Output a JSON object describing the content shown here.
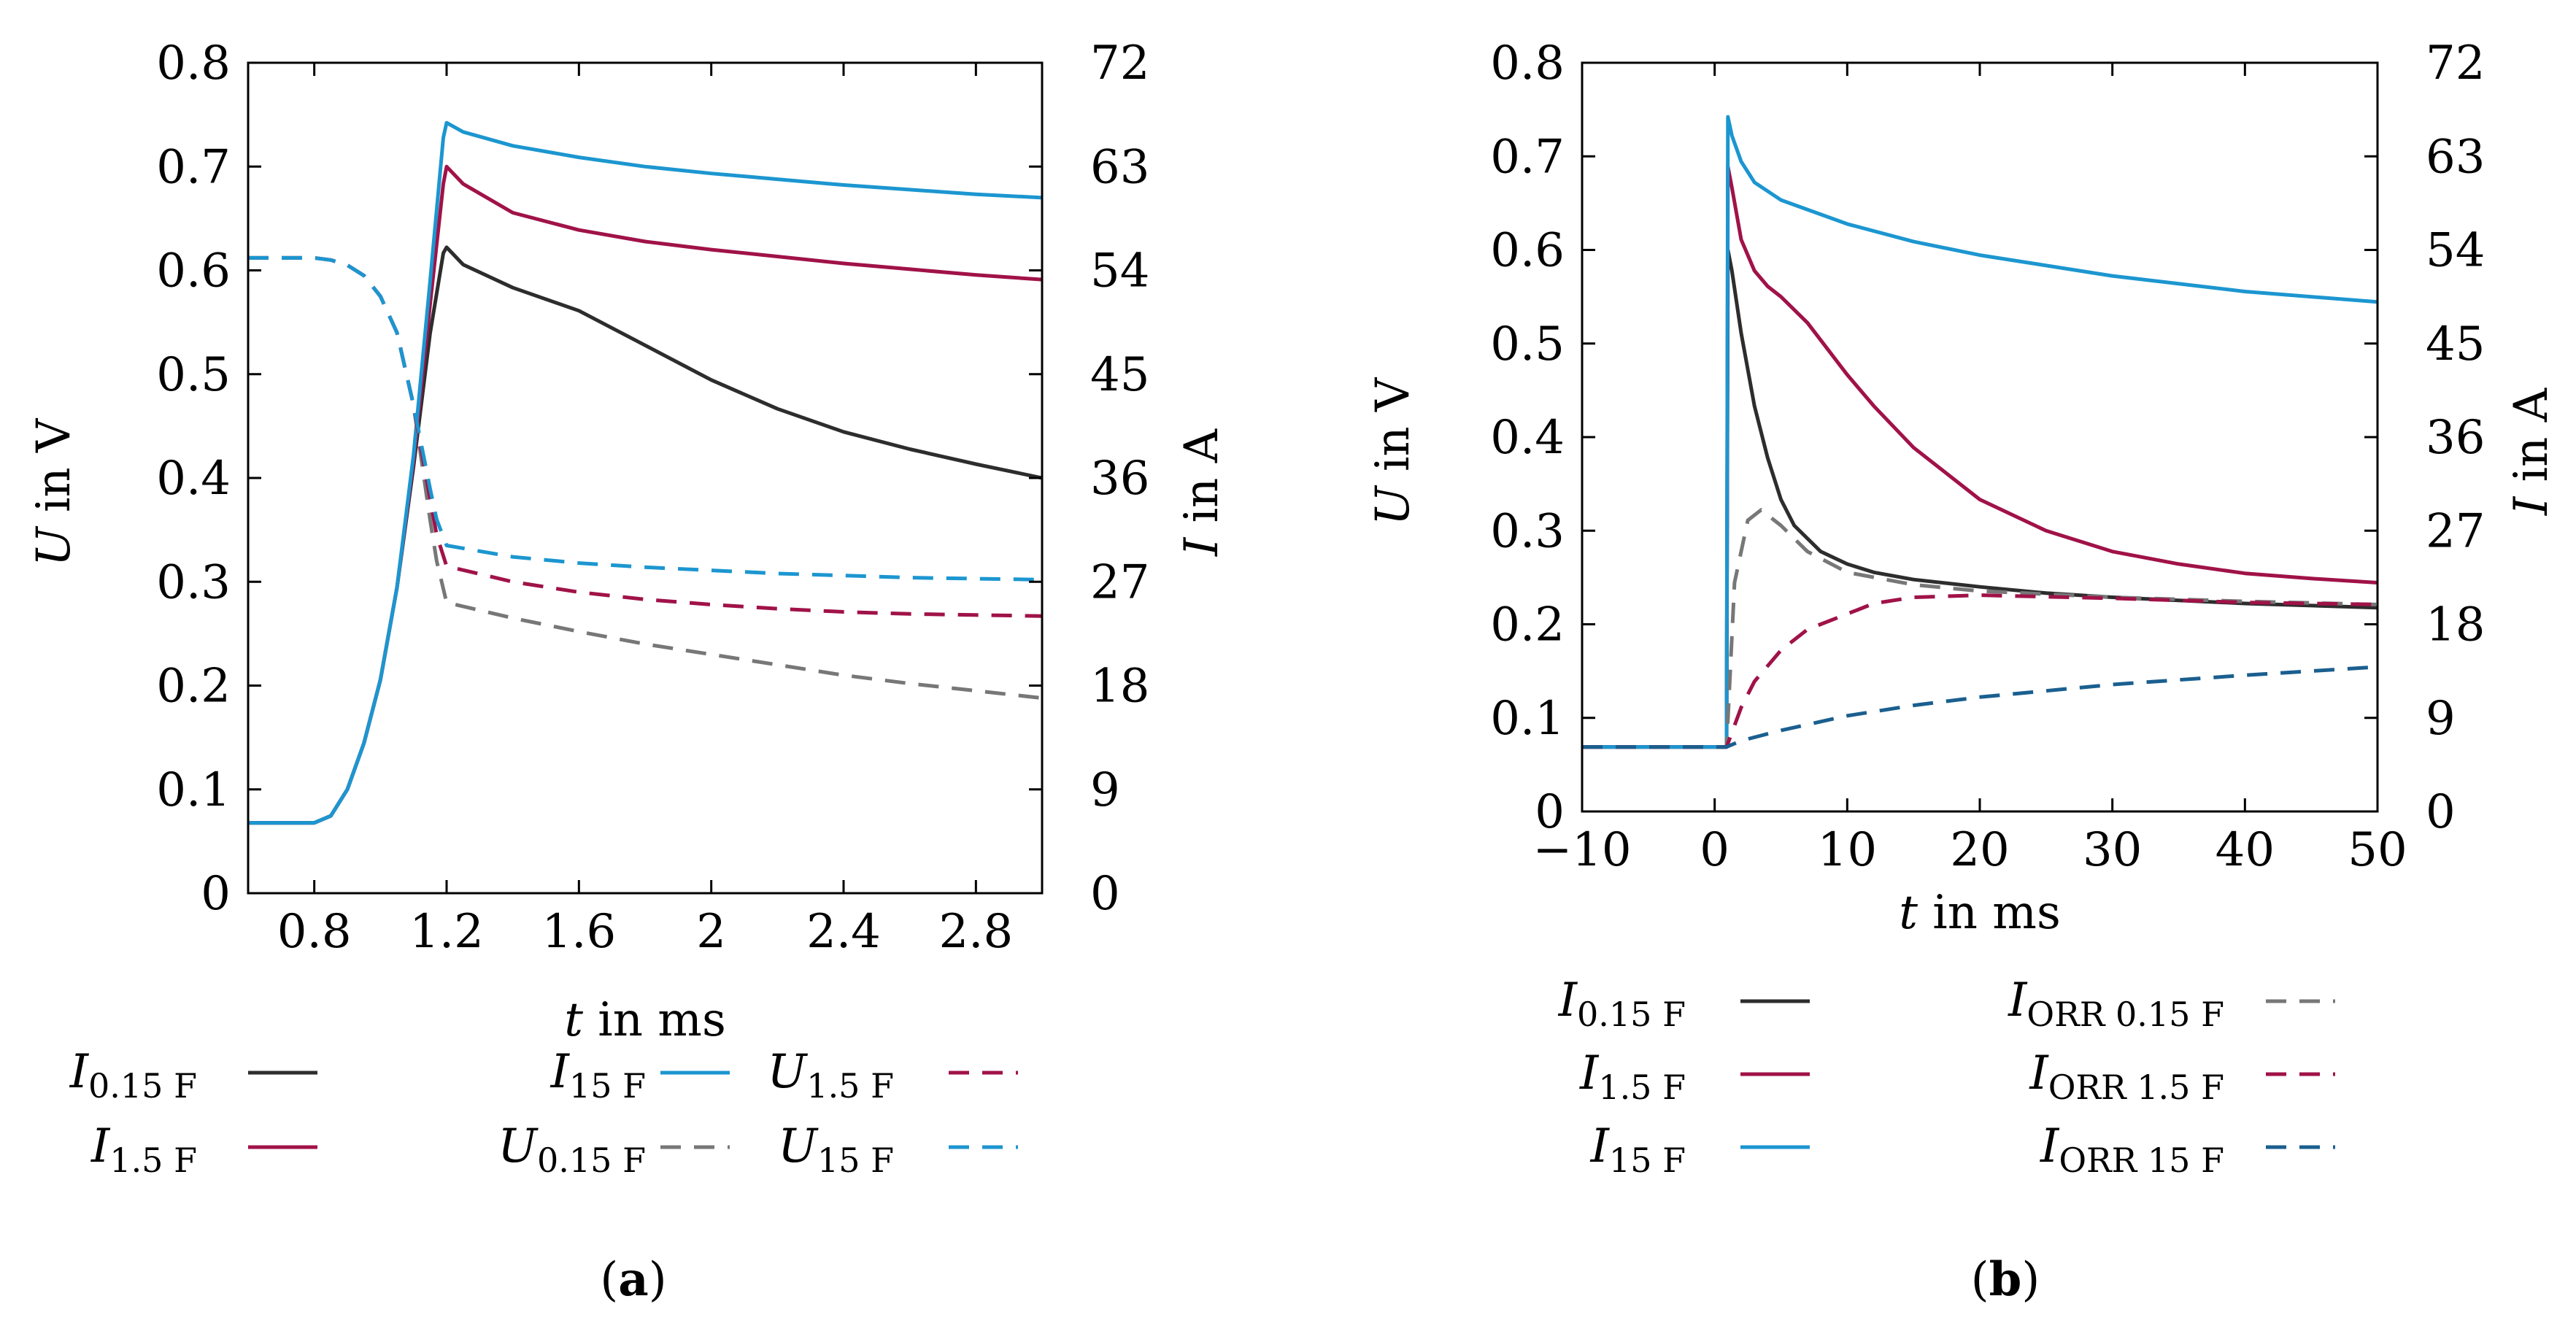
{
  "colors": {
    "black": "#2d2d2d",
    "gray": "#777777",
    "red": "#a01248",
    "blue": "#1c96d0",
    "darkblue": "#1a5f8f"
  },
  "chart_data": [
    {
      "type": "line",
      "panel": "a",
      "caption": {
        "open": "(",
        "label": "a",
        "close": ")"
      },
      "xlabel": {
        "var": "t",
        "unit": " in ms"
      },
      "ylabel_left": {
        "var": "U",
        "unit": " in V"
      },
      "ylabel_right": {
        "var": "I",
        "unit": " in A"
      },
      "xlim": [
        0.6,
        3.0
      ],
      "ylim_left": [
        0,
        0.8
      ],
      "ylim_right": [
        0,
        72
      ],
      "xticks": [
        "0.8",
        "1.2",
        "1.6",
        "2",
        "2.4",
        "2.8"
      ],
      "yticks_left": [
        "0",
        "0.1",
        "0.2",
        "0.3",
        "0.4",
        "0.5",
        "0.6",
        "0.7",
        "0.8"
      ],
      "yticks_right": [
        "0",
        "9",
        "18",
        "27",
        "36",
        "45",
        "54",
        "63",
        "72"
      ],
      "series": [
        {
          "name": "I_0.15F",
          "label": {
            "main": "I",
            "sub": "0.15 F"
          },
          "axis": "right",
          "color": "black",
          "dash": "solid",
          "x": [
            0.6,
            0.8,
            0.85,
            0.9,
            0.95,
            1.0,
            1.05,
            1.1,
            1.15,
            1.19,
            1.2,
            1.25,
            1.4,
            1.6,
            1.8,
            2.0,
            2.2,
            2.4,
            2.6,
            2.8,
            3.0
          ],
          "y": [
            6.1,
            6.1,
            6.7,
            9.0,
            13.0,
            18.5,
            26.5,
            37.0,
            48.5,
            55.5,
            56.0,
            54.5,
            52.5,
            50.5,
            47.5,
            44.5,
            42.0,
            40.0,
            38.5,
            37.2,
            36.0
          ]
        },
        {
          "name": "I_1.5F",
          "label": {
            "main": "I",
            "sub": "1.5 F"
          },
          "axis": "right",
          "color": "red",
          "dash": "solid",
          "x": [
            0.6,
            0.8,
            0.85,
            0.9,
            0.95,
            1.0,
            1.05,
            1.1,
            1.15,
            1.19,
            1.2,
            1.25,
            1.4,
            1.6,
            1.8,
            2.0,
            2.2,
            2.4,
            2.6,
            2.8,
            3.0
          ],
          "y": [
            6.1,
            6.1,
            6.7,
            9.0,
            13.0,
            18.5,
            26.5,
            37.5,
            51.0,
            61.5,
            63.0,
            61.5,
            59.0,
            57.5,
            56.5,
            55.8,
            55.2,
            54.6,
            54.1,
            53.6,
            53.2
          ]
        },
        {
          "name": "I_15F",
          "label": {
            "main": "I",
            "sub": "15 F"
          },
          "axis": "right",
          "color": "blue",
          "dash": "solid",
          "x": [
            0.6,
            0.8,
            0.85,
            0.9,
            0.95,
            1.0,
            1.05,
            1.1,
            1.15,
            1.19,
            1.2,
            1.25,
            1.4,
            1.6,
            1.8,
            2.0,
            2.2,
            2.4,
            2.6,
            2.8,
            3.0
          ],
          "y": [
            6.1,
            6.1,
            6.7,
            9.0,
            13.0,
            18.5,
            26.5,
            38.0,
            53.0,
            65.5,
            66.8,
            66.0,
            64.8,
            63.8,
            63.0,
            62.4,
            61.9,
            61.4,
            61.0,
            60.6,
            60.3
          ]
        },
        {
          "name": "U_0.15F",
          "label": {
            "main": "U",
            "sub": "0.15 F"
          },
          "axis": "left",
          "color": "gray",
          "dash": "dash",
          "x": [
            0.6,
            0.8,
            0.85,
            0.9,
            0.95,
            1.0,
            1.05,
            1.1,
            1.15,
            1.17,
            1.2,
            1.4,
            1.6,
            1.8,
            2.0,
            2.2,
            2.4,
            2.6,
            2.8,
            3.0
          ],
          "y": [
            0.612,
            0.612,
            0.61,
            0.605,
            0.595,
            0.575,
            0.54,
            0.47,
            0.36,
            0.32,
            0.28,
            0.265,
            0.252,
            0.24,
            0.23,
            0.22,
            0.21,
            0.202,
            0.195,
            0.188
          ]
        },
        {
          "name": "U_1.5F",
          "label": {
            "main": "U",
            "sub": "1.5 F"
          },
          "axis": "left",
          "color": "red",
          "dash": "dash",
          "x": [
            0.6,
            0.8,
            0.85,
            0.9,
            0.95,
            1.0,
            1.05,
            1.1,
            1.15,
            1.17,
            1.2,
            1.4,
            1.6,
            1.8,
            2.0,
            2.2,
            2.4,
            2.6,
            2.8,
            3.0
          ],
          "y": [
            0.612,
            0.612,
            0.61,
            0.605,
            0.595,
            0.575,
            0.54,
            0.47,
            0.38,
            0.345,
            0.315,
            0.3,
            0.29,
            0.283,
            0.278,
            0.274,
            0.271,
            0.269,
            0.268,
            0.267
          ]
        },
        {
          "name": "U_15F",
          "label": {
            "main": "U",
            "sub": "15 F"
          },
          "axis": "left",
          "color": "blue",
          "dash": "dash",
          "x": [
            0.6,
            0.8,
            0.85,
            0.9,
            0.95,
            1.0,
            1.05,
            1.1,
            1.15,
            1.17,
            1.2,
            1.4,
            1.6,
            1.8,
            2.0,
            2.2,
            2.4,
            2.6,
            2.8,
            3.0
          ],
          "y": [
            0.612,
            0.612,
            0.61,
            0.605,
            0.595,
            0.575,
            0.54,
            0.47,
            0.39,
            0.36,
            0.335,
            0.324,
            0.318,
            0.314,
            0.311,
            0.308,
            0.306,
            0.304,
            0.303,
            0.302
          ]
        }
      ],
      "legend": {
        "placement": "below",
        "columns": 3,
        "order": [
          [
            "I_0.15F",
            "I_1.5F"
          ],
          [
            "I_15F",
            "U_0.15F"
          ],
          [
            "U_1.5F",
            "U_15F"
          ]
        ]
      }
    },
    {
      "type": "line",
      "panel": "b",
      "caption": {
        "open": "(",
        "label": "b",
        "close": ")"
      },
      "xlabel": {
        "var": "t",
        "unit": " in ms"
      },
      "ylabel_left": {
        "var": "U",
        "unit": " in V"
      },
      "ylabel_right": {
        "var": "I",
        "unit": " in A"
      },
      "xlim": [
        -10,
        50
      ],
      "ylim_left": [
        0,
        0.8
      ],
      "ylim_right": [
        0,
        72
      ],
      "xticks": [
        "−10",
        "0",
        "10",
        "20",
        "30",
        "40",
        "50"
      ],
      "yticks_left": [
        "0",
        "0.1",
        "0.2",
        "0.3",
        "0.4",
        "0.5",
        "0.6",
        "0.7",
        "0.8"
      ],
      "yticks_right": [
        "0",
        "9",
        "18",
        "27",
        "36",
        "45",
        "54",
        "63",
        "72"
      ],
      "series": [
        {
          "name": "I_0.15F",
          "label": {
            "main": "I",
            "sub": "0.15 F"
          },
          "axis": "right",
          "color": "black",
          "dash": "solid",
          "x": [
            -10,
            0.9,
            1.0,
            1.3,
            2,
            3,
            4,
            5,
            6,
            8,
            10,
            12,
            15,
            20,
            25,
            30,
            40,
            50
          ],
          "y": [
            6.2,
            6.2,
            54.0,
            52.0,
            46.0,
            39.0,
            34.0,
            30.0,
            27.5,
            25.0,
            23.8,
            23.0,
            22.3,
            21.6,
            21.0,
            20.6,
            20.0,
            19.6
          ]
        },
        {
          "name": "I_1.5F",
          "label": {
            "main": "I",
            "sub": "1.5 F"
          },
          "axis": "right",
          "color": "red",
          "dash": "solid",
          "x": [
            -10,
            0.9,
            1.0,
            1.3,
            2,
            3,
            4,
            5,
            7,
            10,
            12,
            15,
            20,
            25,
            30,
            35,
            40,
            45,
            50
          ],
          "y": [
            6.2,
            6.2,
            62.0,
            60.0,
            55.0,
            52.0,
            50.5,
            49.5,
            47.0,
            42.0,
            39.0,
            35.0,
            30.0,
            27.0,
            25.0,
            23.8,
            22.9,
            22.4,
            22.0
          ]
        },
        {
          "name": "I_15F",
          "label": {
            "main": "I",
            "sub": "15 F"
          },
          "axis": "right",
          "color": "blue",
          "dash": "solid",
          "x": [
            -10,
            0.9,
            1.0,
            1.3,
            2,
            3,
            5,
            10,
            15,
            20,
            30,
            40,
            50
          ],
          "y": [
            6.2,
            6.2,
            66.8,
            65.0,
            62.5,
            60.5,
            58.8,
            56.5,
            54.8,
            53.5,
            51.5,
            50.0,
            49.0
          ]
        },
        {
          "name": "I_ORR0.15F",
          "label": {
            "main": "I",
            "sub": "ORR 0.15 F"
          },
          "axis": "right",
          "color": "gray",
          "dash": "dash",
          "x": [
            -10,
            0.9,
            1.5,
            2.5,
            3.5,
            5,
            7,
            10,
            15,
            20,
            30,
            40,
            50
          ],
          "y": [
            6.2,
            6.2,
            22.0,
            28.0,
            29.0,
            27.5,
            25.0,
            23.0,
            21.8,
            21.2,
            20.6,
            20.2,
            19.9
          ]
        },
        {
          "name": "I_ORR1.5F",
          "label": {
            "main": "I",
            "sub": "ORR 1.5 F"
          },
          "axis": "right",
          "color": "red",
          "dash": "dash",
          "x": [
            -10,
            0.9,
            2,
            3,
            5,
            7,
            10,
            12,
            15,
            20,
            30,
            40,
            50
          ],
          "y": [
            6.2,
            6.2,
            10.0,
            12.5,
            15.5,
            17.5,
            19.0,
            20.0,
            20.6,
            20.8,
            20.5,
            20.1,
            19.9
          ]
        },
        {
          "name": "I_ORR15F",
          "label": {
            "main": "I",
            "sub": "ORR 15 F"
          },
          "axis": "right",
          "color": "darkblue",
          "dash": "dash",
          "x": [
            -10,
            0.9,
            2,
            5,
            10,
            15,
            20,
            30,
            40,
            50
          ],
          "y": [
            6.2,
            6.2,
            6.8,
            7.8,
            9.2,
            10.2,
            11.0,
            12.2,
            13.1,
            13.9
          ]
        }
      ],
      "legend": {
        "placement": "below",
        "columns": 2,
        "order": [
          [
            "I_0.15F",
            "I_1.5F",
            "I_15F"
          ],
          [
            "I_ORR0.15F",
            "I_ORR1.5F",
            "I_ORR15F"
          ]
        ]
      }
    }
  ]
}
